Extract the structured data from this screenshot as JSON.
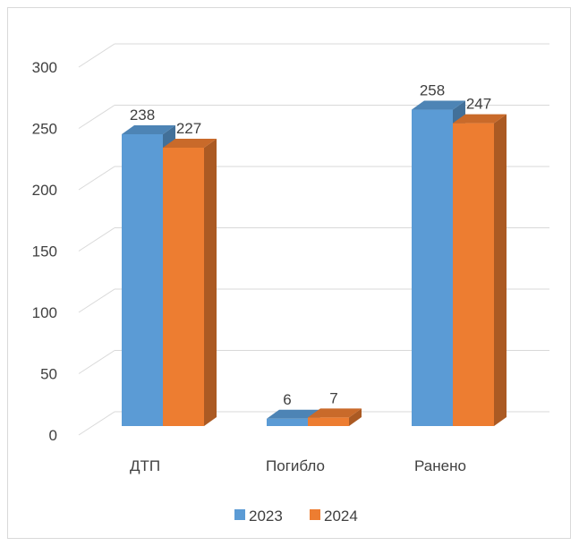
{
  "chart_data": {
    "type": "bar",
    "categories": [
      "ДТП",
      "Погибло",
      "Ранено"
    ],
    "series": [
      {
        "name": "2023",
        "values": [
          238,
          6,
          258
        ],
        "color": "#5b9bd5"
      },
      {
        "name": "2024",
        "values": [
          227,
          7,
          247
        ],
        "color": "#ed7d31"
      }
    ],
    "ylim": [
      0,
      300
    ],
    "yticks": [
      "0",
      "50",
      "100",
      "150",
      "200",
      "250",
      "300"
    ],
    "grid": true,
    "legend": "bottom",
    "style": "3d-clustered-column"
  }
}
